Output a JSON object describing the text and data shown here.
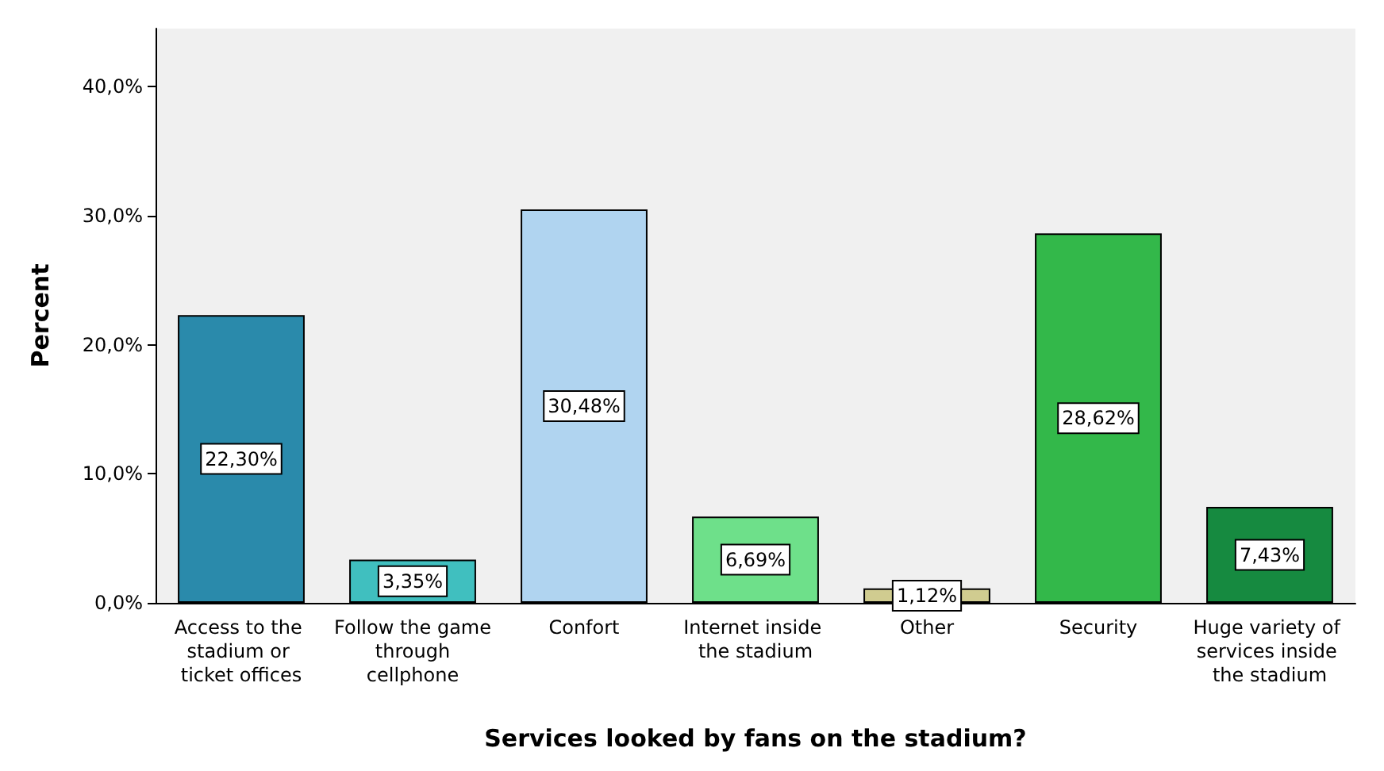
{
  "chart_data": {
    "type": "bar",
    "xlabel": "Services looked by fans on the stadium?",
    "ylabel": "Percent",
    "categories": [
      "Access to the stadium or ticket offices",
      "Follow the game through cellphone",
      "Confort",
      "Internet inside the stadium",
      "Other",
      "Security",
      "Huge variety of services inside the stadium"
    ],
    "values": [
      22.3,
      3.35,
      30.48,
      6.69,
      1.12,
      28.62,
      7.43
    ],
    "colors": [
      "#2a8aab",
      "#40bfbf",
      "#b0d4f0",
      "#6ee08a",
      "#d0cc90",
      "#33b84a",
      "#168a40"
    ],
    "value_labels": [
      "22,30%",
      "3,35%",
      "30,48%",
      "6,69%",
      "1,12%",
      "28,62%",
      "7,43%"
    ],
    "ylim": [
      0,
      44.5
    ],
    "yticks": [
      {
        "value": 0,
        "label": "0,0%"
      },
      {
        "value": 10,
        "label": "10,0%"
      },
      {
        "value": 20,
        "label": "20,0%"
      },
      {
        "value": 30,
        "label": "30,0%"
      },
      {
        "value": 40,
        "label": "40,0%"
      }
    ],
    "grid": false
  }
}
